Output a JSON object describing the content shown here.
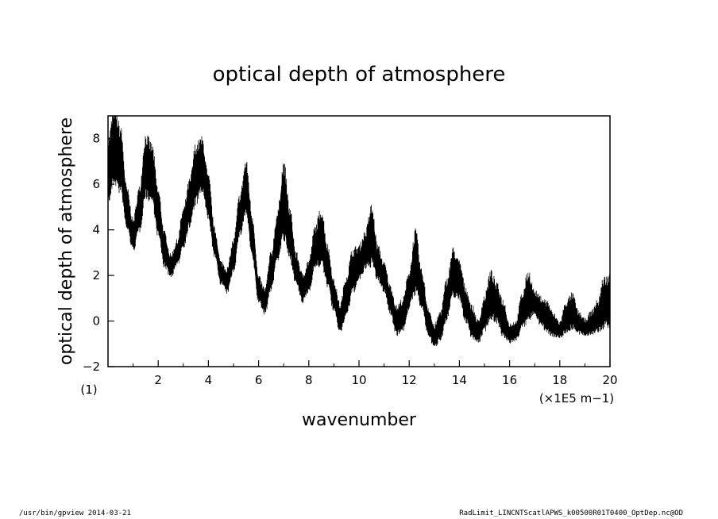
{
  "chart_data": {
    "type": "line",
    "title": "optical depth of atmosphere",
    "xlabel": "wavenumber",
    "ylabel": "optical depth of atmosphere",
    "x_unit": "(×1E5 m−1)",
    "y_unit": "(1)",
    "xlim": [
      0,
      20
    ],
    "ylim": [
      -2,
      9
    ],
    "x_ticks": [
      2,
      4,
      6,
      8,
      10,
      12,
      14,
      16,
      18,
      20
    ],
    "y_ticks": [
      -2,
      0,
      2,
      4,
      6,
      8
    ],
    "grid": false,
    "line_color": "#000000",
    "series": [
      {
        "x": [
          0.0,
          0.25,
          0.5,
          0.75,
          1.0,
          1.25,
          1.5,
          1.75,
          2.0,
          2.25,
          2.5,
          2.75,
          3.0,
          3.25,
          3.5,
          3.75,
          4.0,
          4.25,
          4.5,
          4.75,
          5.0,
          5.25,
          5.5,
          5.75,
          6.0,
          6.25,
          6.5,
          6.75,
          7.0,
          7.25,
          7.5,
          7.75,
          8.0,
          8.25,
          8.5,
          8.75,
          9.0,
          9.25,
          9.5,
          9.75,
          10.0,
          10.25,
          10.5,
          10.75,
          11.0,
          11.25,
          11.5,
          11.75,
          12.0,
          12.25,
          12.5,
          12.75,
          13.0,
          13.25,
          13.5,
          13.75,
          14.0,
          14.25,
          14.5,
          14.75,
          15.0,
          15.25,
          15.5,
          15.75,
          16.0,
          16.25,
          16.5,
          16.75,
          17.0,
          17.25,
          17.5,
          17.75,
          18.0,
          18.25,
          18.5,
          18.75,
          19.0,
          19.25,
          19.5,
          19.75,
          20.0
        ],
        "y_low": [
          5.5,
          6.5,
          6.0,
          4.3,
          3.3,
          4.2,
          5.8,
          5.6,
          4.0,
          2.6,
          2.1,
          2.6,
          3.5,
          4.4,
          5.5,
          6.0,
          4.7,
          3.0,
          1.8,
          1.4,
          2.4,
          4.0,
          5.0,
          3.0,
          1.0,
          0.5,
          1.6,
          3.0,
          4.0,
          3.0,
          1.8,
          1.0,
          1.5,
          2.6,
          2.8,
          1.8,
          0.6,
          -0.3,
          0.5,
          1.5,
          2.0,
          2.5,
          2.8,
          2.0,
          1.5,
          0.5,
          -0.4,
          -0.2,
          0.8,
          1.6,
          0.8,
          -0.4,
          -1.0,
          -0.6,
          0.3,
          1.4,
          1.2,
          0.2,
          -0.5,
          -0.8,
          -0.2,
          0.4,
          0.2,
          -0.5,
          -0.8,
          -0.7,
          -0.1,
          0.3,
          0.5,
          0.0,
          -0.3,
          -0.5,
          -0.6,
          -0.3,
          -0.1,
          -0.4,
          -0.5,
          -0.4,
          -0.3,
          0.0,
          0.1
        ],
        "y_high": [
          7.5,
          8.8,
          8.0,
          5.5,
          4.2,
          5.5,
          7.7,
          7.3,
          5.4,
          3.6,
          2.7,
          3.3,
          4.6,
          5.8,
          7.3,
          7.6,
          6.0,
          3.8,
          2.4,
          2.1,
          3.3,
          5.2,
          6.6,
          4.3,
          1.7,
          1.2,
          2.7,
          4.4,
          6.4,
          4.5,
          2.7,
          1.8,
          2.4,
          3.8,
          4.5,
          3.0,
          1.5,
          0.5,
          1.7,
          2.8,
          3.0,
          3.6,
          4.6,
          3.0,
          2.3,
          1.3,
          0.4,
          0.7,
          1.9,
          3.5,
          1.9,
          0.4,
          -0.4,
          0.2,
          1.5,
          2.8,
          2.3,
          1.2,
          0.4,
          -0.2,
          0.8,
          1.8,
          1.3,
          0.6,
          -0.3,
          -0.2,
          0.9,
          1.8,
          1.1,
          0.8,
          0.6,
          0.1,
          -0.2,
          0.6,
          0.9,
          0.2,
          -0.1,
          0.2,
          0.6,
          1.5,
          1.6
        ]
      }
    ]
  },
  "footer": {
    "left": "/usr/bin/gpview  2014-03-21",
    "right": "RadLimit_LINCNTScatlAPWS_k00500R01T0400_OptDep.nc@OD"
  }
}
